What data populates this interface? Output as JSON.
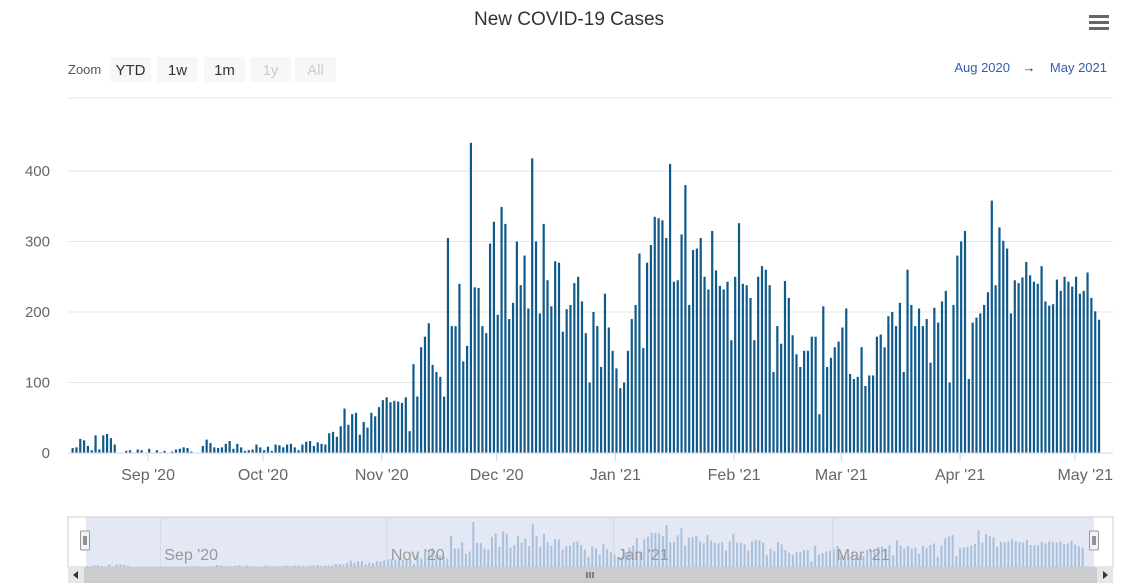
{
  "chart_data": {
    "type": "bar",
    "title": "New COVID-19 Cases",
    "range_selector": {
      "zoom_label": "Zoom",
      "buttons": [
        {
          "label": "YTD",
          "enabled": true
        },
        {
          "label": "1w",
          "enabled": true
        },
        {
          "label": "1m",
          "enabled": true
        },
        {
          "label": "1y",
          "enabled": false
        },
        {
          "label": "All",
          "enabled": false
        }
      ],
      "from": "Aug 2020",
      "arrow": "→",
      "to": "May 2021"
    },
    "x_start_date": "2020-08-12",
    "ylim": [
      0,
      440
    ],
    "y_ticks": [
      0,
      100,
      200,
      300,
      400
    ],
    "x_tick_labels": [
      "Sep '20",
      "Oct '20",
      "Nov '20",
      "Dec '20",
      "Jan '21",
      "Feb '21",
      "Mar '21",
      "Apr '21",
      "May '21"
    ],
    "navigator_labels": [
      "Sep '20",
      "Nov '20",
      "Jan '21",
      "Mar '21"
    ],
    "grid": true,
    "colors": {
      "bar": "#0f5a8c",
      "navigator_bar": "#7fa7c9",
      "navigator_mask": "#ccd6eb",
      "grid": "#e6e6e6"
    },
    "values": [
      7,
      8,
      20,
      18,
      10,
      4,
      25,
      5,
      25,
      27,
      21,
      12,
      0,
      0,
      3,
      4,
      0,
      5,
      4,
      0,
      6,
      0,
      4,
      1,
      3,
      0,
      2,
      5,
      6,
      8,
      7,
      2,
      0,
      0,
      10,
      19,
      14,
      8,
      7,
      8,
      13,
      17,
      6,
      13,
      8,
      3,
      4,
      5,
      12,
      8,
      4,
      9,
      3,
      12,
      11,
      8,
      12,
      13,
      8,
      4,
      12,
      16,
      17,
      10,
      15,
      13,
      12,
      28,
      30,
      23,
      38,
      63,
      40,
      55,
      57,
      26,
      44,
      36,
      57,
      52,
      65,
      75,
      79,
      72,
      74,
      73,
      71,
      79,
      31,
      126,
      80,
      150,
      165,
      184,
      125,
      115,
      108,
      80,
      305,
      180,
      180,
      240,
      130,
      152,
      440,
      235,
      234,
      180,
      170,
      297,
      328,
      196,
      349,
      325,
      190,
      213,
      300,
      238,
      280,
      205,
      418,
      300,
      198,
      325,
      245,
      208,
      272,
      270,
      172,
      204,
      210,
      241,
      250,
      215,
      170,
      100,
      200,
      180,
      122,
      226,
      178,
      145,
      120,
      92,
      100,
      145,
      190,
      210,
      283,
      149,
      270,
      295,
      335,
      333,
      330,
      305,
      410,
      243,
      245,
      310,
      380,
      210,
      288,
      290,
      305,
      250,
      232,
      315,
      259,
      237,
      232,
      243,
      160,
      250,
      326,
      240,
      238,
      220,
      160,
      250,
      265,
      260,
      238,
      115,
      180,
      155,
      244,
      220,
      167,
      140,
      122,
      145,
      145,
      165,
      165,
      55,
      208,
      122,
      135,
      150,
      158,
      178,
      205,
      112,
      105,
      108,
      150,
      95,
      110,
      110,
      165,
      168,
      150,
      194,
      200,
      180,
      213,
      115,
      260,
      210,
      180,
      205,
      180,
      190,
      128,
      206,
      185,
      215,
      230,
      100,
      210,
      280,
      300,
      315,
      105,
      185,
      192,
      198,
      210,
      228,
      358,
      238,
      320,
      301,
      290,
      198,
      245,
      241,
      249,
      271,
      252,
      243,
      240,
      265,
      215,
      209,
      211,
      246,
      230,
      250,
      243,
      236,
      250,
      226,
      230,
      256,
      220,
      201,
      189
    ],
    "series": [
      {
        "name": "",
        "color": "#0f5a8c"
      }
    ]
  }
}
